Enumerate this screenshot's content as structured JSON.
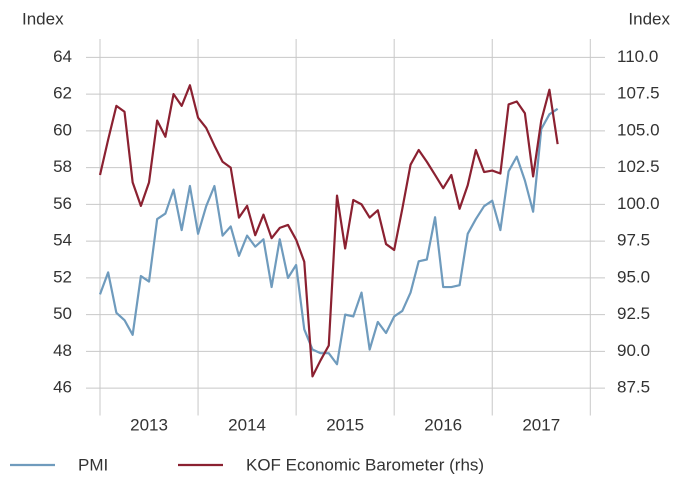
{
  "chart_data": {
    "type": "line",
    "y_label": "Index",
    "y2_label": "Index",
    "x": [
      2013,
      2013.083,
      2013.167,
      2013.25,
      2013.333,
      2013.417,
      2013.5,
      2013.583,
      2013.667,
      2013.75,
      2013.833,
      2013.917,
      2014,
      2014.083,
      2014.167,
      2014.25,
      2014.333,
      2014.417,
      2014.5,
      2014.583,
      2014.667,
      2014.75,
      2014.833,
      2014.917,
      2015,
      2015.083,
      2015.167,
      2015.25,
      2015.333,
      2015.417,
      2015.5,
      2015.583,
      2015.667,
      2015.75,
      2015.833,
      2015.917,
      2016,
      2016.083,
      2016.167,
      2016.25,
      2016.333,
      2016.417,
      2016.5,
      2016.583,
      2016.667,
      2016.75,
      2016.833,
      2016.917,
      2017,
      2017.083,
      2017.167,
      2017.25,
      2017.333,
      2017.417,
      2017.5,
      2017.583,
      2017.667
    ],
    "xlim": [
      2013,
      2018.15
    ],
    "xticks": [
      {
        "value": 2013,
        "label": "2013"
      },
      {
        "value": 2014,
        "label": "2014"
      },
      {
        "value": 2015,
        "label": "2015"
      },
      {
        "value": 2016,
        "label": "2016"
      },
      {
        "value": 2017,
        "label": "2017"
      },
      {
        "value": 2018,
        "label": null
      }
    ],
    "ylim": [
      45,
      65
    ],
    "yticks": [
      46,
      48,
      50,
      52,
      54,
      56,
      58,
      60,
      62,
      64
    ],
    "y2lim": [
      86.25,
      111.25
    ],
    "y2ticks": [
      {
        "value": 87.5,
        "label": "87.5"
      },
      {
        "value": 90,
        "label": "90.0"
      },
      {
        "value": 92.5,
        "label": "92.5"
      },
      {
        "value": 95,
        "label": "95.0"
      },
      {
        "value": 97.5,
        "label": "97.5"
      },
      {
        "value": 100,
        "label": "100.0"
      },
      {
        "value": 102.5,
        "label": "102.5"
      },
      {
        "value": 105,
        "label": "105.0"
      },
      {
        "value": 107.5,
        "label": "107.5"
      },
      {
        "value": 110,
        "label": "110.0"
      }
    ],
    "grid": true,
    "legend": "bottom",
    "series": [
      {
        "name": "PMI",
        "color": "#6f9bbd",
        "values": [
          51.1,
          52.3,
          50.1,
          49.7,
          48.9,
          52.1,
          51.8,
          55.2,
          55.5,
          56.8,
          54.6,
          57.0,
          54.4,
          55.9,
          57.0,
          54.3,
          54.8,
          53.2,
          54.3,
          53.7,
          54.1,
          51.5,
          54.1,
          52.0,
          52.7,
          49.2,
          48.1,
          47.9,
          47.9,
          47.3,
          50.0,
          49.9,
          51.2,
          48.1,
          49.6,
          49.0,
          49.9,
          50.2,
          51.2,
          52.9,
          53.0,
          55.3,
          51.5,
          51.5,
          51.6,
          54.4,
          55.2,
          55.9,
          56.2,
          54.6,
          57.8,
          58.6,
          57.3,
          55.6,
          60.1,
          60.9,
          61.2
        ]
      },
      {
        "name": "KOF Economic Barometer (rhs)",
        "color": "#8b2131",
        "axis": "y2",
        "values": [
          102.0,
          104.4,
          106.7,
          106.3,
          101.5,
          99.9,
          101.5,
          105.7,
          104.6,
          107.5,
          106.7,
          108.1,
          105.9,
          105.2,
          104.0,
          102.9,
          102.5,
          99.1,
          99.9,
          97.9,
          99.3,
          97.7,
          98.4,
          98.6,
          97.6,
          96.1,
          88.3,
          89.4,
          90.4,
          100.6,
          97.0,
          100.3,
          100.0,
          99.1,
          99.6,
          97.3,
          96.9,
          99.7,
          102.7,
          103.7,
          102.9,
          102.0,
          101.1,
          102.0,
          99.7,
          101.3,
          103.7,
          102.2,
          102.3,
          102.1,
          106.8,
          107.0,
          106.2,
          101.9,
          105.7,
          107.8,
          104.1
        ]
      }
    ]
  }
}
